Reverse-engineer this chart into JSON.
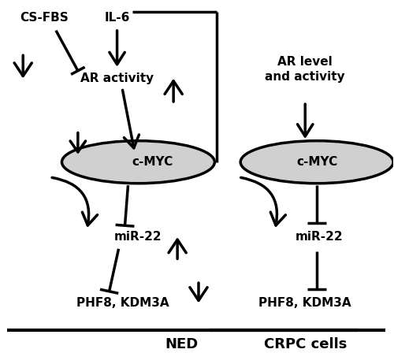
{
  "fig_width": 5.0,
  "fig_height": 4.48,
  "dpi": 100,
  "bg_color": "#ffffff",
  "lw": 2.5,
  "panel_left": {
    "label": "NED",
    "cs_fbs_text": "CS-FBS",
    "il6_text": "IL-6",
    "ar_text": "AR activity",
    "cmyc_text": "c-MYC",
    "mir22_text": "miR-22",
    "phf8_text": "PHF8, KDM3A"
  },
  "panel_right": {
    "label": "CRPC cells",
    "ar_text": "AR level\nand activity",
    "cmyc_text": "c-MYC",
    "mir22_text": "miR-22",
    "phf8_text": "PHF8, KDM3A"
  },
  "ellipse_color": "#d0d0d0",
  "text_color": "#000000"
}
